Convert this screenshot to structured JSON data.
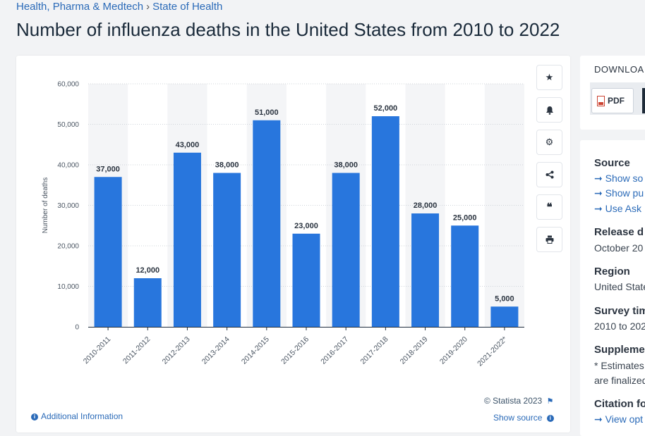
{
  "breadcrumb": {
    "category": "Health, Pharma & Medtech",
    "separator": "›",
    "topic": "State of Health"
  },
  "page": {
    "title": "Number of influenza deaths in the United States from 2010 to 2022"
  },
  "chart_data": {
    "type": "bar",
    "categories": [
      "2010-2011",
      "2011-2012",
      "2012-2013",
      "2013-2014",
      "2014-2015",
      "2015-2016",
      "2016-2017",
      "2017-2018",
      "2018-2019",
      "2019-2020",
      "2021-2022*"
    ],
    "values": [
      37000,
      12000,
      43000,
      38000,
      51000,
      23000,
      38000,
      52000,
      28000,
      25000,
      5000
    ],
    "data_labels": [
      "37,000",
      "12,000",
      "43,000",
      "38,000",
      "51,000",
      "23,000",
      "38,000",
      "52,000",
      "28,000",
      "25,000",
      "5,000"
    ],
    "ylabel": "Number of deaths",
    "ylim": [
      0,
      60000
    ],
    "yticks": [
      0,
      10000,
      20000,
      30000,
      40000,
      50000,
      60000
    ],
    "ytick_labels": [
      "0",
      "10,000",
      "20,000",
      "30,000",
      "40,000",
      "50,000",
      "60,000"
    ],
    "bar_color": "#2876dd",
    "grid": true
  },
  "chart_footer": {
    "copyright": "© Statista 2023",
    "show_source": "Show source",
    "additional_info": "Additional Information"
  },
  "toolbar": {
    "icons": [
      "star-icon",
      "bell-icon",
      "gear-icon",
      "share-icon",
      "quote-icon",
      "print-icon"
    ]
  },
  "download": {
    "title": "DOWNLOA",
    "pdf_label": "PDF"
  },
  "info": {
    "source_heading": "Source",
    "source_links": [
      "Show so",
      "Show pu",
      "Use Ask"
    ],
    "release_heading": "Release d",
    "release_value": "October 20",
    "region_heading": "Region",
    "region_value": "United State",
    "survey_heading": "Survey tim",
    "survey_value": "2010 to 202",
    "supplement_heading": "Suppleme",
    "supplement_lines": [
      "* Estimates",
      "are finalized"
    ],
    "citation_heading": "Citation fo",
    "citation_link": "View opt"
  }
}
